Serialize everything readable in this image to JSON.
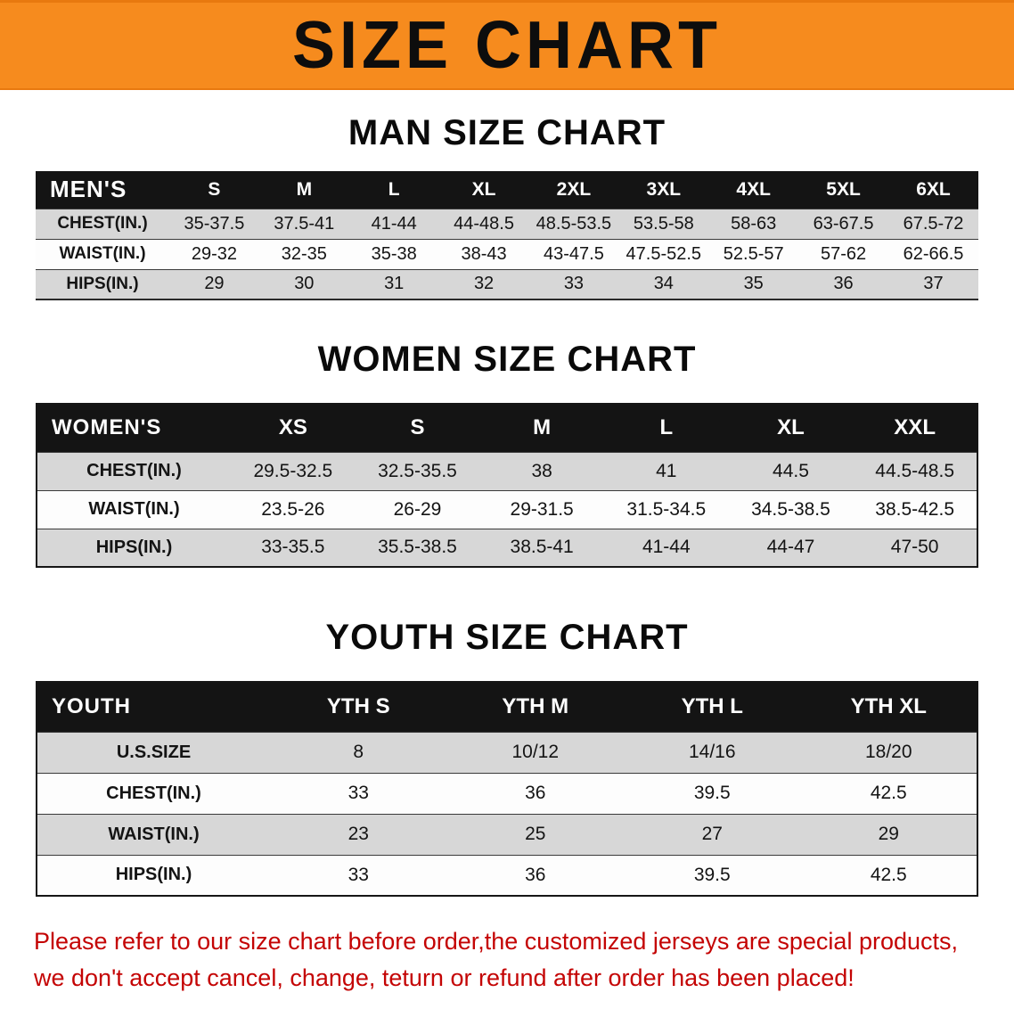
{
  "banner": {
    "title": "SIZE CHART"
  },
  "colors": {
    "banner_orange": "#f68b1e",
    "header_black": "#141414",
    "stripe_gray": "#d7d7d7",
    "note_red": "#c40404"
  },
  "sections": [
    {
      "heading": "MAN SIZE CHART",
      "table": {
        "header": [
          "MEN'S",
          "S",
          "M",
          "L",
          "XL",
          "2XL",
          "3XL",
          "4XL",
          "5XL",
          "6XL"
        ],
        "rows": [
          [
            "CHEST(IN.)",
            "35-37.5",
            "37.5-41",
            "41-44",
            "44-48.5",
            "48.5-53.5",
            "53.5-58",
            "58-63",
            "63-67.5",
            "67.5-72"
          ],
          [
            "WAIST(IN.)",
            "29-32",
            "32-35",
            "35-38",
            "38-43",
            "43-47.5",
            "47.5-52.5",
            "52.5-57",
            "57-62",
            "62-66.5"
          ],
          [
            "HIPS(IN.)",
            "29",
            "30",
            "31",
            "32",
            "33",
            "34",
            "35",
            "36",
            "37"
          ]
        ]
      }
    },
    {
      "heading": "WOMEN SIZE CHART",
      "table": {
        "header": [
          "WOMEN'S",
          "XS",
          "S",
          "M",
          "L",
          "XL",
          "XXL"
        ],
        "rows": [
          [
            "CHEST(IN.)",
            "29.5-32.5",
            "32.5-35.5",
            "38",
            "41",
            "44.5",
            "44.5-48.5"
          ],
          [
            "WAIST(IN.)",
            "23.5-26",
            "26-29",
            "29-31.5",
            "31.5-34.5",
            "34.5-38.5",
            "38.5-42.5"
          ],
          [
            "HIPS(IN.)",
            "33-35.5",
            "35.5-38.5",
            "38.5-41",
            "41-44",
            "44-47",
            "47-50"
          ]
        ]
      }
    },
    {
      "heading": "YOUTH SIZE CHART",
      "table": {
        "header": [
          "YOUTH",
          "YTH S",
          "YTH M",
          "YTH L",
          "YTH XL"
        ],
        "rows": [
          [
            "U.S.SIZE",
            "8",
            "10/12",
            "14/16",
            "18/20"
          ],
          [
            "CHEST(IN.)",
            "33",
            "36",
            "39.5",
            "42.5"
          ],
          [
            "WAIST(IN.)",
            "23",
            "25",
            "27",
            "29"
          ],
          [
            "HIPS(IN.)",
            "33",
            "36",
            "39.5",
            "42.5"
          ]
        ]
      }
    }
  ],
  "footer_note": {
    "line1": "Please refer to our size chart before order,the customized jerseys are special products,",
    "line2": "we don't accept cancel, change, teturn or refund after order has been placed!"
  }
}
